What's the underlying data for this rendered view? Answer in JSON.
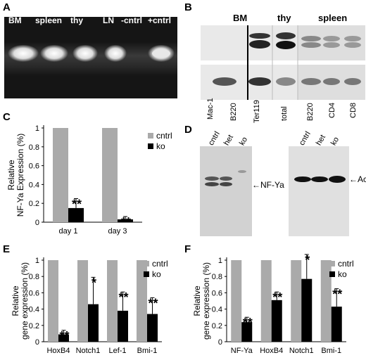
{
  "panels": {
    "A": {
      "letter": "A",
      "lanes": [
        "BM",
        "spleen",
        "thy",
        "LN",
        "-cntrl",
        "+cntrl"
      ]
    },
    "B": {
      "letter": "B",
      "groups": [
        "BM",
        "thy",
        "spleen"
      ],
      "lanes": [
        "Mac-1",
        "B220",
        "Ter119",
        "total",
        "B220",
        "CD4",
        "CD8"
      ]
    },
    "D": {
      "letter": "D",
      "left_lanes": [
        "cntrl",
        "het",
        "ko"
      ],
      "right_lanes": [
        "cntrl",
        "het",
        "ko"
      ],
      "band_left": "NF-Ya",
      "band_right": "Actin"
    }
  },
  "chart_data": [
    {
      "panel": "C",
      "type": "bar",
      "categories": [
        "day 1",
        "day 3"
      ],
      "series": [
        {
          "name": "cntrl",
          "values": [
            1.0,
            1.0
          ],
          "color": "#aaaaaa"
        },
        {
          "name": "ko",
          "values": [
            0.15,
            0.03
          ],
          "errors": [
            0.1,
            0.03
          ],
          "color": "#000000"
        }
      ],
      "annotations": [
        "**",
        "**"
      ],
      "ylabel": "Relative NF-Ya Expression (%)",
      "ylim": [
        0,
        1
      ],
      "yticks": [
        "0",
        "0.2",
        "0.4",
        "0.6",
        "0.8",
        "1"
      ],
      "legend": "top-right"
    },
    {
      "panel": "E",
      "type": "bar",
      "categories": [
        "HoxB4",
        "Notch1",
        "Lef-1",
        "Bmi-1"
      ],
      "series": [
        {
          "name": "cntrl",
          "values": [
            1.0,
            1.0,
            1.0,
            1.0
          ],
          "color": "#aaaaaa"
        },
        {
          "name": "ko",
          "values": [
            0.09,
            0.46,
            0.38,
            0.34
          ],
          "errors": [
            0.05,
            0.33,
            0.23,
            0.2
          ],
          "color": "#000000"
        }
      ],
      "annotations": [
        "**",
        "*",
        "**",
        "**"
      ],
      "ylabel": "Relative gene expression (%)",
      "ylim": [
        0,
        1
      ],
      "yticks": [
        "0",
        "0.2",
        "0.4",
        "0.6",
        "0.8",
        "1"
      ],
      "legend": "top-right"
    },
    {
      "panel": "F",
      "type": "bar",
      "categories": [
        "NF-Ya",
        "HoxB4",
        "Notch1",
        "Bmi-1"
      ],
      "series": [
        {
          "name": "cntrl",
          "values": [
            1.0,
            1.0,
            1.0,
            1.0
          ],
          "color": "#aaaaaa"
        },
        {
          "name": "ko",
          "values": [
            0.24,
            0.51,
            0.77,
            0.43
          ],
          "errors": [
            0.06,
            0.1,
            0.3,
            0.22
          ],
          "color": "#000000"
        }
      ],
      "annotations": [
        "**",
        "**",
        "*",
        "**"
      ],
      "ylabel": "Relative gene expression (%)",
      "ylim": [
        0,
        1
      ],
      "yticks": [
        "0",
        "0.2",
        "0.4",
        "0.6",
        "0.8",
        "1"
      ],
      "legend": "top-right"
    }
  ]
}
